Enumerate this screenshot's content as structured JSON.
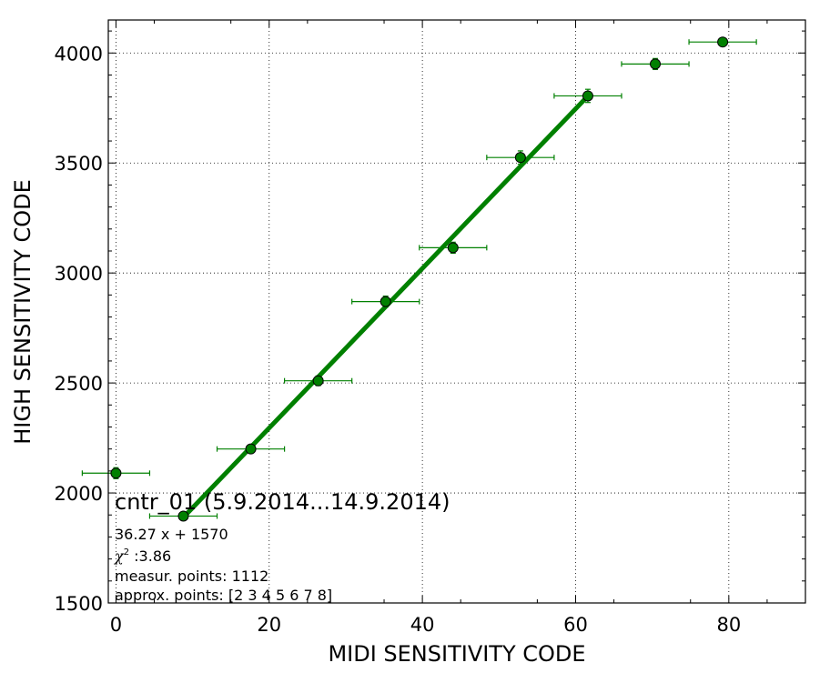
{
  "chart_data": {
    "type": "scatter",
    "xlabel": "MIDI SENSITIVITY CODE",
    "ylabel": "HIGH SENSITIVITY CODE",
    "xlim": [
      -1,
      90
    ],
    "ylim": [
      1500,
      4150
    ],
    "x_ticks": [
      0,
      20,
      40,
      60,
      80
    ],
    "x_tick_labels": [
      "0",
      "20",
      "40",
      "60",
      "80"
    ],
    "y_ticks": [
      1500,
      2000,
      2500,
      3000,
      3500,
      4000
    ],
    "y_tick_labels": [
      "1500",
      "2000",
      "2500",
      "3000",
      "3500",
      "4000"
    ],
    "grid": true,
    "color": "#008000",
    "points": [
      {
        "x": 0.0,
        "y": 2090,
        "xerr": 4.4,
        "yerr": 25
      },
      {
        "x": 8.8,
        "y": 1895,
        "xerr": 4.4,
        "yerr": 12
      },
      {
        "x": 17.6,
        "y": 2200,
        "xerr": 4.4,
        "yerr": 12
      },
      {
        "x": 26.4,
        "y": 2510,
        "xerr": 4.4,
        "yerr": 22
      },
      {
        "x": 35.2,
        "y": 2870,
        "xerr": 4.4,
        "yerr": 25
      },
      {
        "x": 44.0,
        "y": 3115,
        "xerr": 4.4,
        "yerr": 25
      },
      {
        "x": 52.8,
        "y": 3525,
        "xerr": 4.4,
        "yerr": 30
      },
      {
        "x": 61.6,
        "y": 3805,
        "xerr": 4.4,
        "yerr": 30
      },
      {
        "x": 70.4,
        "y": 3950,
        "xerr": 4.4,
        "yerr": 25
      },
      {
        "x": 79.2,
        "y": 4050,
        "xerr": 4.4,
        "yerr": 12
      }
    ],
    "fit": {
      "slope": 36.27,
      "intercept": 1570,
      "x_range": [
        8.8,
        61.6
      ]
    },
    "annotation": {
      "title": "cntr_01 (5.9.2014...14.9.2014)",
      "equation": "36.27 x + 1570",
      "chi_symbol": "χ",
      "chi_sup": "2",
      "chi_value": " :3.86",
      "measur_points": "measur. points: 1112",
      "approx_points": "approx. points: [2 3 4 5 6 7 8]"
    }
  }
}
